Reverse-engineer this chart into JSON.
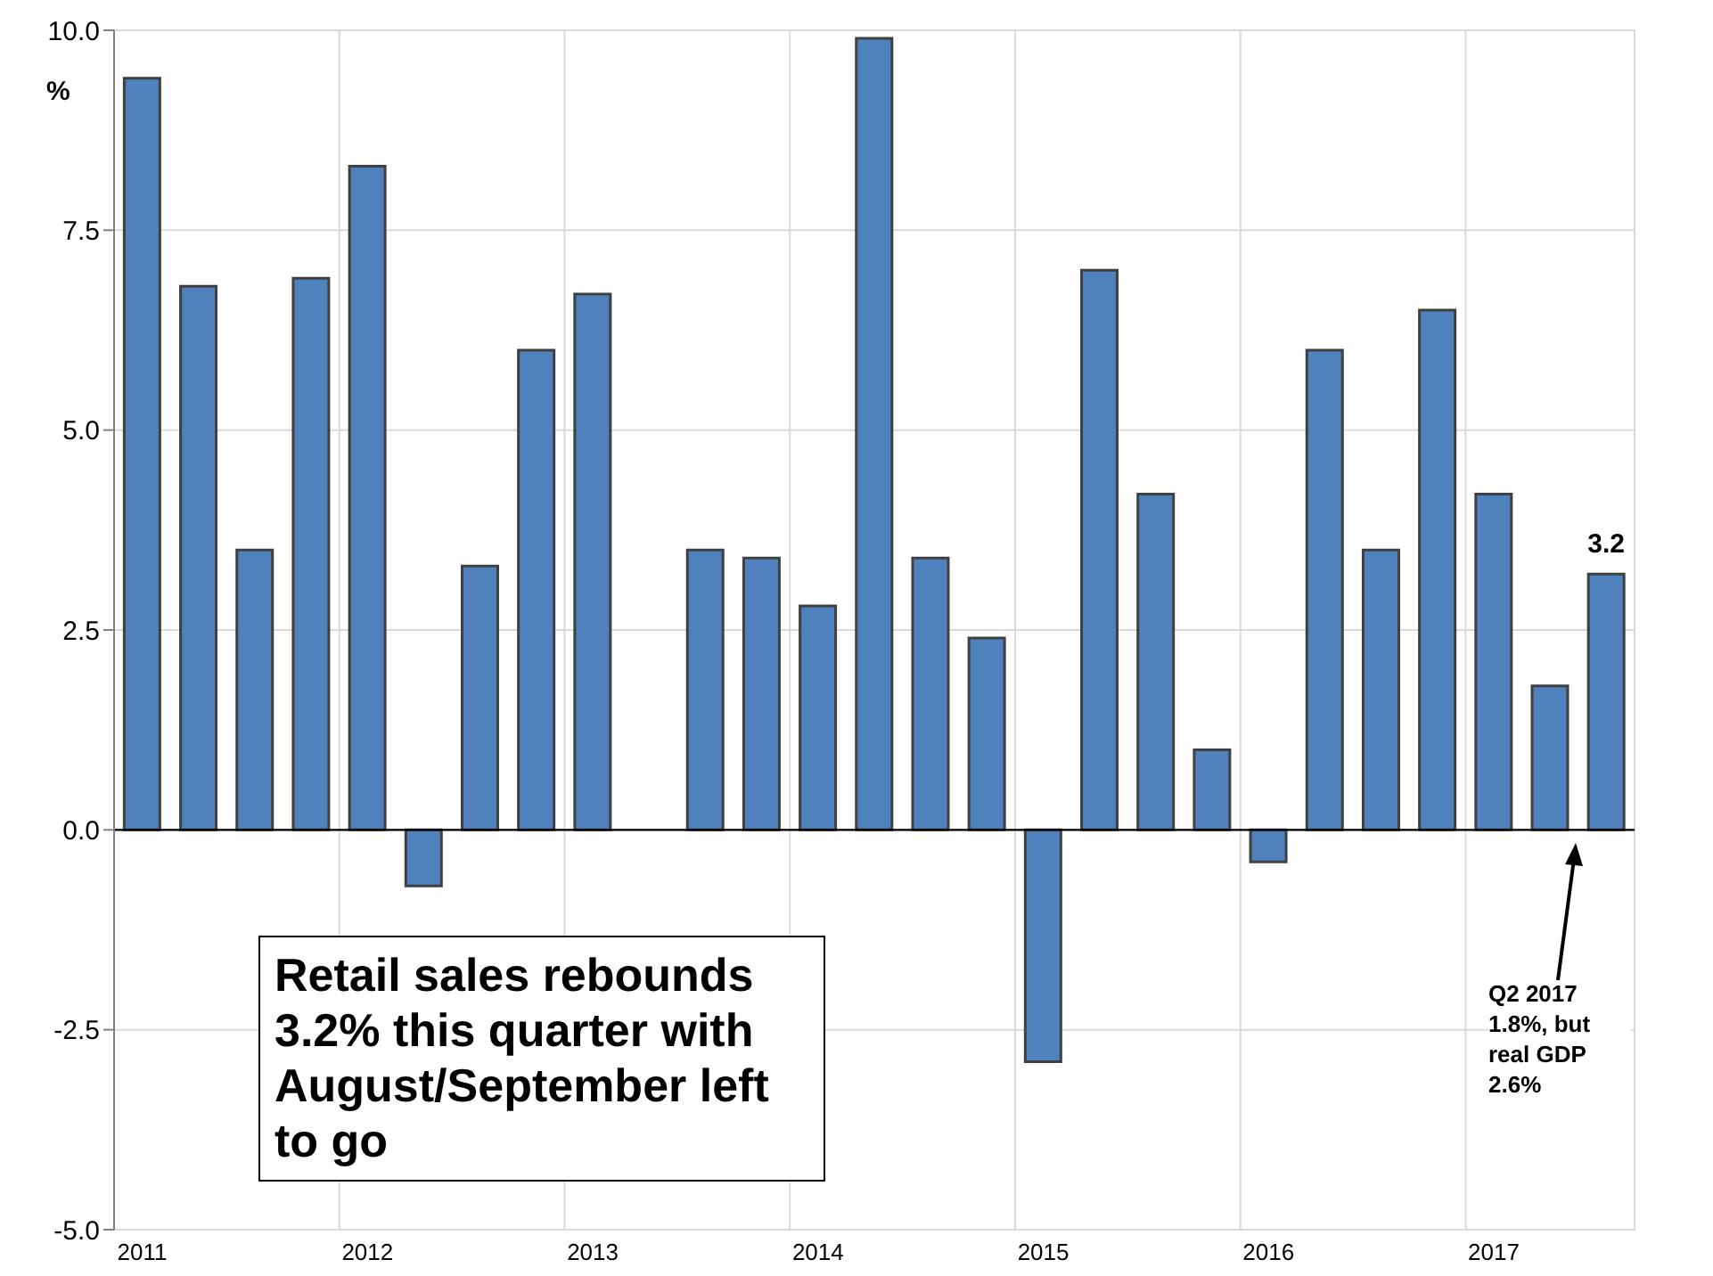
{
  "chart_data": {
    "type": "bar",
    "ylabel": "%",
    "categories": [
      "2011",
      null,
      null,
      null,
      "2012",
      null,
      null,
      null,
      "2013",
      null,
      null,
      null,
      "2014",
      null,
      null,
      null,
      "2015",
      null,
      null,
      null,
      "2016",
      null,
      null,
      null,
      "2017",
      null,
      null
    ],
    "values": [
      9.4,
      6.8,
      3.5,
      6.9,
      8.3,
      -0.7,
      3.3,
      6.0,
      6.7,
      0.0,
      3.5,
      3.4,
      2.8,
      9.9,
      3.4,
      2.4,
      -2.9,
      7.0,
      4.2,
      1.0,
      -0.4,
      6.0,
      3.5,
      6.5,
      4.2,
      1.8,
      3.2
    ],
    "value_labels": [
      null,
      null,
      null,
      null,
      null,
      null,
      null,
      null,
      null,
      null,
      null,
      null,
      null,
      null,
      null,
      null,
      null,
      null,
      null,
      null,
      null,
      null,
      null,
      null,
      null,
      null,
      "3.2"
    ],
    "color": "#4f81bd",
    "ylim": [
      -5,
      10
    ],
    "yticks": [
      {
        "value": -5,
        "label": "-5.0"
      },
      {
        "value": -2.5,
        "label": "-2.5"
      },
      {
        "value": 0,
        "label": "0.0"
      },
      {
        "value": 2.5,
        "label": "2.5"
      },
      {
        "value": 5,
        "label": "5.0"
      },
      {
        "value": 7.5,
        "label": "7.5"
      },
      {
        "value": 10,
        "label": "10.0"
      }
    ],
    "grid": true,
    "annotations": [
      "Retail sales rebounds 3.2% this quarter with August/September left to go",
      "Q2 2017 1.8%, but real GDP 2.6%"
    ]
  }
}
